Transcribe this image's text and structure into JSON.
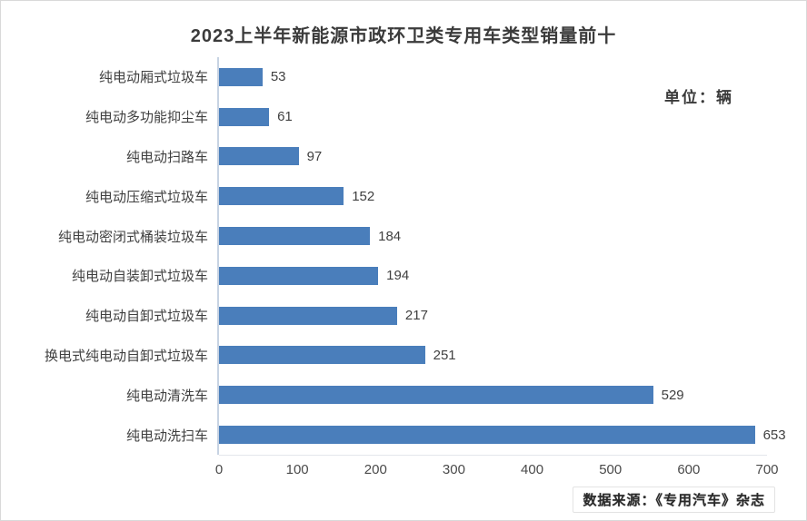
{
  "title": "2023上半年新能源市政环卫类专用车类型销量前十",
  "unit_label": "单位：辆",
  "source_label": "数据来源：《专用汽车》杂志",
  "colors": {
    "bar": "#4a7ebb",
    "axis_line": "#c7d3e3",
    "text": "#3f3f3f"
  },
  "chart_data": {
    "type": "bar",
    "orientation": "horizontal",
    "title": "2023上半年新能源市政环卫类专用车类型销量前十",
    "categories": [
      "纯电动厢式垃圾车",
      "纯电动多功能抑尘车",
      "纯电动扫路车",
      "纯电动压缩式垃圾车",
      "纯电动密闭式桶装垃圾车",
      "纯电动自装卸式垃圾车",
      "纯电动自卸式垃圾车",
      "换电式纯电动自卸式垃圾车",
      "纯电动清洗车",
      "纯电动洗扫车"
    ],
    "values": [
      53,
      61,
      97,
      152,
      184,
      194,
      217,
      251,
      529,
      653
    ],
    "xlabel": "",
    "ylabel": "",
    "xlim": [
      0,
      700
    ],
    "xticks": [
      0,
      100,
      200,
      300,
      400,
      500,
      600,
      700
    ],
    "grid": false,
    "legend": false,
    "data_labels": true,
    "unit": "辆"
  }
}
